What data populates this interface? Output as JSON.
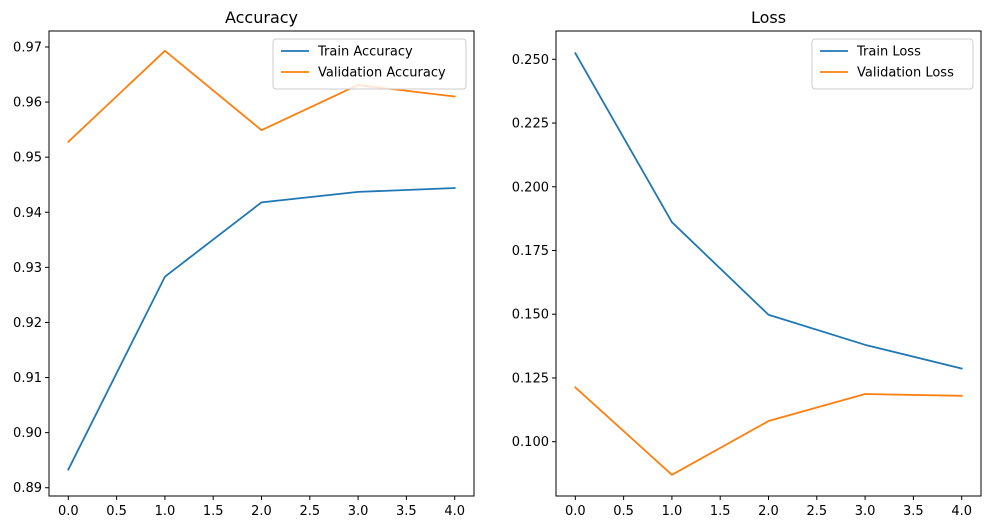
{
  "chart_data": [
    {
      "type": "line",
      "title": "Accuracy",
      "xlabel": "",
      "ylabel": "",
      "x": [
        0,
        1,
        2,
        3,
        4
      ],
      "xlim": [
        -0.2,
        4.2
      ],
      "ylim": [
        0.8885,
        0.9729
      ],
      "xticks": [
        0.0,
        0.5,
        1.0,
        1.5,
        2.0,
        2.5,
        3.0,
        3.5,
        4.0
      ],
      "xtick_labels": [
        "0.0",
        "0.5",
        "1.0",
        "1.5",
        "2.0",
        "2.5",
        "3.0",
        "3.5",
        "4.0"
      ],
      "yticks": [
        0.89,
        0.9,
        0.91,
        0.92,
        0.93,
        0.94,
        0.95,
        0.96,
        0.97
      ],
      "ytick_labels": [
        "0.89",
        "0.90",
        "0.91",
        "0.92",
        "0.93",
        "0.94",
        "0.95",
        "0.96",
        "0.97"
      ],
      "series": [
        {
          "name": "Train Accuracy",
          "color": "#1f77b4",
          "values": [
            0.8933,
            0.9283,
            0.9418,
            0.9437,
            0.9444
          ]
        },
        {
          "name": "Validation Accuracy",
          "color": "#ff7f0e",
          "values": [
            0.9528,
            0.9693,
            0.9549,
            0.9631,
            0.961
          ]
        }
      ],
      "legend": "upper right",
      "grid": false
    },
    {
      "type": "line",
      "title": "Loss",
      "xlabel": "",
      "ylabel": "",
      "x": [
        0,
        1,
        2,
        3,
        4
      ],
      "xlim": [
        -0.2,
        4.2
      ],
      "ylim": [
        0.0787,
        0.2611
      ],
      "xticks": [
        0.0,
        0.5,
        1.0,
        1.5,
        2.0,
        2.5,
        3.0,
        3.5,
        4.0
      ],
      "xtick_labels": [
        "0.0",
        "0.5",
        "1.0",
        "1.5",
        "2.0",
        "2.5",
        "3.0",
        "3.5",
        "4.0"
      ],
      "yticks": [
        0.1,
        0.125,
        0.15,
        0.175,
        0.2,
        0.225,
        0.25
      ],
      "ytick_labels": [
        "0.100",
        "0.125",
        "0.150",
        "0.175",
        "0.200",
        "0.225",
        "0.250"
      ],
      "series": [
        {
          "name": "Train Loss",
          "color": "#1f77b4",
          "values": [
            0.2524,
            0.1861,
            0.1498,
            0.138,
            0.1287
          ]
        },
        {
          "name": "Validation Loss",
          "color": "#ff7f0e",
          "values": [
            0.1213,
            0.087,
            0.1081,
            0.1187,
            0.118
          ]
        }
      ],
      "legend": "upper right",
      "grid": false
    }
  ]
}
